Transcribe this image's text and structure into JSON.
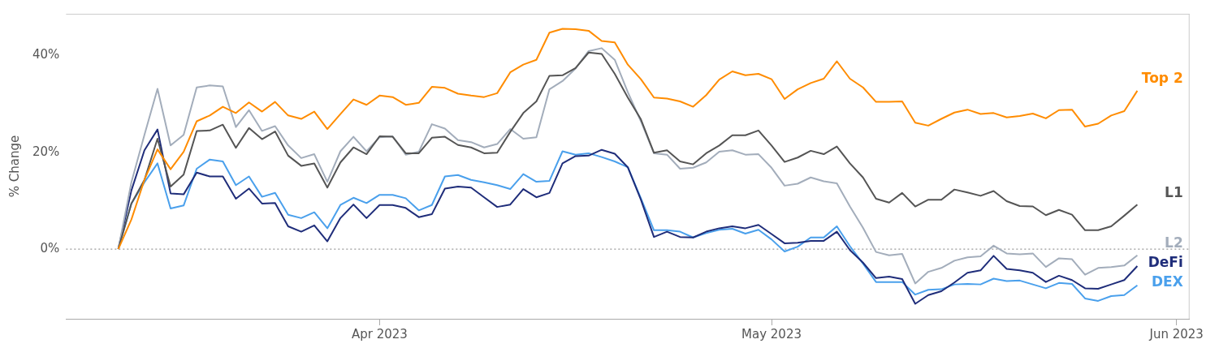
{
  "chart_data": {
    "type": "line",
    "ylabel": "% Change",
    "legend": false,
    "grid": false,
    "marker": "none",
    "line_style": "solid",
    "x": [
      "2023-03-12",
      "2023-03-13",
      "2023-03-14",
      "2023-03-15",
      "2023-03-16",
      "2023-03-17",
      "2023-03-18",
      "2023-03-19",
      "2023-03-20",
      "2023-03-21",
      "2023-03-22",
      "2023-03-23",
      "2023-03-24",
      "2023-03-25",
      "2023-03-26",
      "2023-03-27",
      "2023-03-28",
      "2023-03-29",
      "2023-03-30",
      "2023-03-31",
      "2023-04-01",
      "2023-04-02",
      "2023-04-03",
      "2023-04-04",
      "2023-04-05",
      "2023-04-06",
      "2023-04-07",
      "2023-04-08",
      "2023-04-09",
      "2023-04-10",
      "2023-04-11",
      "2023-04-12",
      "2023-04-13",
      "2023-04-14",
      "2023-04-15",
      "2023-04-16",
      "2023-04-17",
      "2023-04-18",
      "2023-04-19",
      "2023-04-20",
      "2023-04-21",
      "2023-04-22",
      "2023-04-23",
      "2023-04-24",
      "2023-04-25",
      "2023-04-26",
      "2023-04-27",
      "2023-04-28",
      "2023-04-29",
      "2023-04-30",
      "2023-05-01",
      "2023-05-02",
      "2023-05-03",
      "2023-05-04",
      "2023-05-05",
      "2023-05-06",
      "2023-05-07",
      "2023-05-08",
      "2023-05-09",
      "2023-05-10",
      "2023-05-11",
      "2023-05-12",
      "2023-05-13",
      "2023-05-14",
      "2023-05-15",
      "2023-05-16",
      "2023-05-17",
      "2023-05-18",
      "2023-05-19",
      "2023-05-20",
      "2023-05-21",
      "2023-05-22",
      "2023-05-23",
      "2023-05-24",
      "2023-05-25",
      "2023-05-26",
      "2023-05-27",
      "2023-05-28",
      "2023-05-29"
    ],
    "xlim": [
      "2023-03-08",
      "2023-06-02"
    ],
    "xticks": [
      {
        "value": "2023-04-01",
        "label": "Apr 2023"
      },
      {
        "value": "2023-05-01",
        "label": "May 2023"
      },
      {
        "value": "2023-06-01",
        "label": "Jun 2023"
      }
    ],
    "ylim": [
      -14.4,
      48.6
    ],
    "yticks": [
      {
        "value": 0,
        "label": "0%"
      },
      {
        "value": 20,
        "label": "20%"
      },
      {
        "value": 40,
        "label": "40%"
      }
    ],
    "ref_lines": [
      {
        "axis": "y",
        "value": 0,
        "color": "#999999",
        "line_style": "dotted"
      }
    ],
    "series": [
      {
        "name": "Top 2",
        "color": "#ff8c00",
        "values": [
          0,
          6.1,
          14.3,
          20.6,
          16.5,
          20.1,
          26.4,
          27.6,
          29.4,
          28.1,
          30.3,
          28.4,
          30.4,
          27.6,
          26.9,
          28.4,
          24.8,
          27.9,
          30.9,
          29.8,
          31.7,
          31.4,
          29.8,
          30.2,
          33.5,
          33.3,
          32.1,
          31.7,
          31.4,
          32.2,
          36.5,
          38.1,
          39.1,
          44.7,
          45.5,
          45.4,
          45.1,
          43.0,
          42.7,
          38.1,
          35.1,
          31.3,
          31.1,
          30.5,
          29.4,
          31.8,
          35.0,
          36.7,
          35.9,
          36.2,
          35.1,
          31.0,
          33.0,
          34.3,
          35.2,
          38.8,
          35.2,
          33.4,
          30.4,
          30.4,
          30.5,
          26.1,
          25.5,
          26.9,
          28.2,
          28.8,
          27.9,
          28.1,
          27.2,
          27.5,
          28.0,
          27.0,
          28.7,
          28.8,
          25.3,
          25.9,
          27.6,
          28.5,
          32.7
        ]
      },
      {
        "name": "L1",
        "color": "#555555",
        "values": [
          0,
          9.4,
          14.3,
          22.8,
          12.9,
          15.4,
          24.4,
          24.5,
          25.7,
          20.9,
          25.0,
          22.7,
          24.3,
          19.3,
          17.2,
          17.7,
          12.7,
          17.9,
          21.0,
          19.6,
          23.3,
          23.2,
          19.8,
          19.8,
          23.0,
          23.2,
          21.5,
          21.0,
          19.8,
          19.9,
          24.2,
          28.1,
          30.5,
          35.8,
          35.9,
          37.4,
          40.6,
          40.3,
          36.2,
          31.3,
          26.8,
          19.9,
          20.4,
          18.1,
          17.5,
          19.8,
          21.4,
          23.5,
          23.5,
          24.5,
          21.4,
          18.0,
          18.9,
          20.3,
          19.6,
          21.2,
          17.7,
          14.8,
          10.4,
          9.6,
          11.6,
          8.8,
          10.2,
          10.2,
          12.3,
          11.7,
          11.0,
          12.0,
          9.9,
          8.9,
          8.8,
          7.0,
          8.1,
          7.1,
          3.9,
          3.9,
          4.7,
          6.9,
          9.2
        ]
      },
      {
        "name": "L2",
        "color": "#a3adbb",
        "values": [
          0,
          13.8,
          23.6,
          33.1,
          21.4,
          23.6,
          33.4,
          33.8,
          33.6,
          25.2,
          28.7,
          24.4,
          25.4,
          21.4,
          18.8,
          19.6,
          13.9,
          20.2,
          23.2,
          20.2,
          23.1,
          23.3,
          19.5,
          20.1,
          25.8,
          24.9,
          22.5,
          22.1,
          21.0,
          21.7,
          24.8,
          22.8,
          23.1,
          33.0,
          34.7,
          37.3,
          40.9,
          41.5,
          39.1,
          32.4,
          26.4,
          19.8,
          19.5,
          16.6,
          16.8,
          17.9,
          20.1,
          20.4,
          19.5,
          19.6,
          16.8,
          13.1,
          13.5,
          14.8,
          14.0,
          13.6,
          8.8,
          4.4,
          -0.6,
          -1.3,
          -1.0,
          -7.1,
          -4.7,
          -3.9,
          -2.4,
          -1.7,
          -1.5,
          0.7,
          -0.9,
          -1.1,
          -0.9,
          -3.7,
          -1.9,
          -2.1,
          -5.3,
          -3.9,
          -3.7,
          -3.4,
          -1.3
        ]
      },
      {
        "name": "DeFi",
        "color": "#1f2d7a",
        "values": [
          0,
          12.1,
          20.4,
          24.7,
          11.5,
          11.3,
          15.8,
          15.0,
          15.0,
          10.4,
          12.5,
          9.4,
          9.5,
          4.7,
          3.6,
          4.9,
          1.6,
          6.4,
          9.2,
          6.4,
          9.1,
          9.1,
          8.5,
          6.6,
          7.2,
          12.5,
          12.9,
          12.7,
          10.7,
          8.7,
          9.2,
          12.4,
          10.7,
          11.6,
          17.7,
          19.2,
          19.3,
          20.5,
          19.7,
          16.9,
          10.2,
          2.5,
          3.6,
          2.5,
          2.4,
          3.6,
          4.3,
          4.7,
          4.3,
          5.0,
          3.1,
          1.2,
          1.3,
          1.7,
          1.7,
          3.6,
          -0.2,
          -2.8,
          -6.0,
          -5.7,
          -6.2,
          -11.3,
          -9.5,
          -8.7,
          -6.9,
          -4.9,
          -4.4,
          -1.4,
          -4.1,
          -4.4,
          -4.9,
          -6.8,
          -5.5,
          -6.4,
          -8.1,
          -8.2,
          -7.3,
          -6.4,
          -3.5
        ]
      },
      {
        "name": "DEX",
        "color": "#4aa0ec",
        "values": [
          0,
          9.4,
          13.8,
          17.7,
          8.4,
          9.0,
          16.6,
          18.5,
          18.1,
          13.2,
          15.0,
          10.8,
          11.6,
          7.1,
          6.4,
          7.6,
          4.3,
          9.1,
          10.6,
          9.5,
          11.2,
          11.2,
          10.5,
          8.0,
          9.1,
          15.0,
          15.3,
          14.3,
          13.8,
          13.2,
          12.4,
          15.5,
          13.9,
          14.1,
          20.2,
          19.5,
          19.8,
          19.0,
          18.1,
          16.9,
          10.5,
          3.9,
          3.9,
          3.6,
          2.4,
          3.3,
          4.0,
          4.2,
          3.2,
          4.0,
          2.0,
          -0.5,
          0.5,
          2.4,
          2.4,
          4.7,
          0.6,
          -3.0,
          -6.8,
          -6.8,
          -6.8,
          -9.4,
          -8.4,
          -8.3,
          -7.3,
          -7.2,
          -7.3,
          -6.1,
          -6.6,
          -6.5,
          -7.3,
          -8.1,
          -7.0,
          -7.2,
          -10.2,
          -10.7,
          -9.7,
          -9.5,
          -7.5
        ]
      }
    ]
  }
}
